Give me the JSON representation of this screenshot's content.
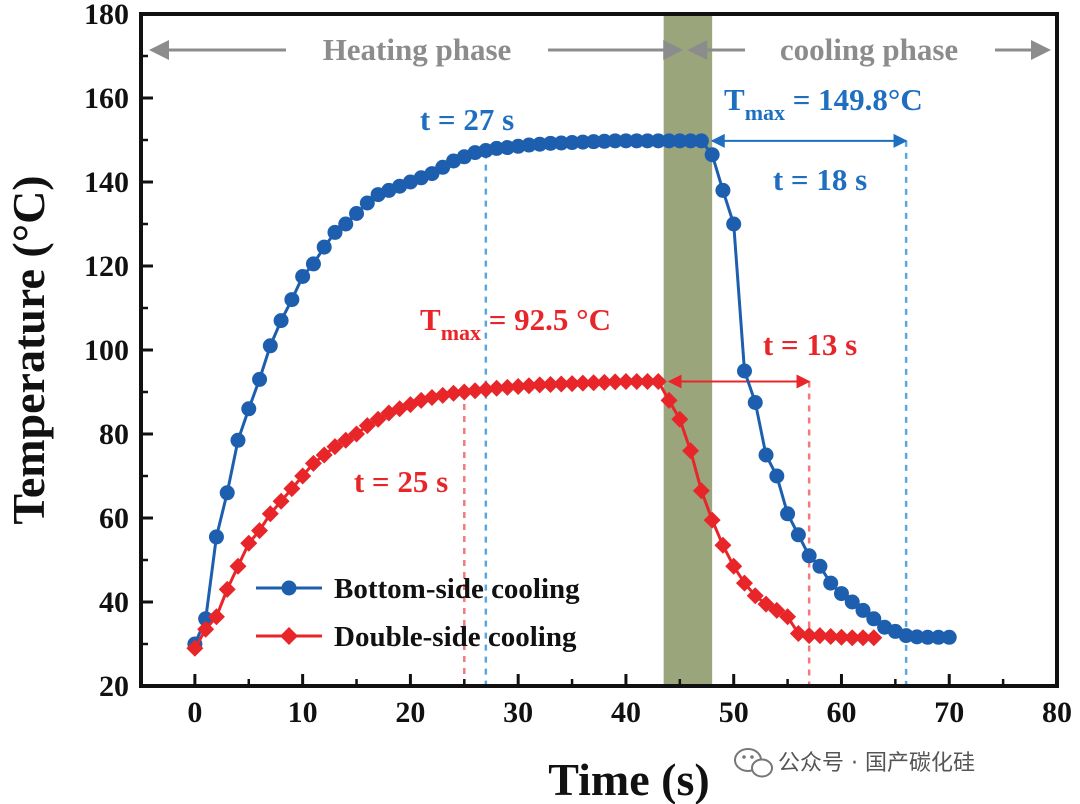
{
  "chart_data": {
    "type": "line",
    "xlabel": "Time (s)",
    "ylabel": "Temperature (°C)",
    "xlim": [
      -5,
      80
    ],
    "ylim": [
      20,
      180
    ],
    "xticks": [
      0,
      10,
      20,
      30,
      40,
      50,
      60,
      70,
      80
    ],
    "yticks": [
      20,
      40,
      60,
      80,
      100,
      120,
      140,
      160,
      180
    ],
    "grid": false,
    "legend_position": "bottom-left",
    "shaded_band": {
      "x_start": 43.5,
      "x_end": 48,
      "color": "#9aa57c"
    },
    "phases": {
      "heating_label": "Heating phase",
      "cooling_label": "cooling phase",
      "boundary_x": 45.5
    },
    "series": [
      {
        "name": "Bottom-side cooling",
        "color": "#1d5fae",
        "marker": "circle",
        "x": [
          0,
          1,
          2,
          3,
          4,
          5,
          6,
          7,
          8,
          9,
          10,
          11,
          12,
          13,
          14,
          15,
          16,
          17,
          18,
          19,
          20,
          21,
          22,
          23,
          24,
          25,
          26,
          27,
          28,
          29,
          30,
          31,
          32,
          33,
          34,
          35,
          36,
          37,
          38,
          39,
          40,
          41,
          42,
          43,
          44,
          45,
          46,
          47,
          48,
          49,
          50,
          51,
          52,
          53,
          54,
          55,
          56,
          57,
          58,
          59,
          60,
          61,
          62,
          63,
          64,
          65,
          66,
          67,
          68,
          69,
          70
        ],
        "values": [
          30,
          36,
          55.5,
          66,
          78.5,
          86,
          93,
          101,
          107,
          112,
          117.5,
          120.5,
          124.5,
          128,
          130,
          132.5,
          135,
          137,
          138,
          139,
          140,
          141,
          142,
          143.5,
          145,
          146,
          147,
          147.5,
          148,
          148.2,
          148.5,
          148.8,
          149,
          149.2,
          149.3,
          149.4,
          149.5,
          149.6,
          149.7,
          149.8,
          149.8,
          149.8,
          149.8,
          149.8,
          149.8,
          149.8,
          149.8,
          149.8,
          146.5,
          138,
          130,
          95,
          87.5,
          75,
          70,
          61,
          56,
          51,
          48.5,
          44.5,
          42,
          40,
          38,
          36,
          34,
          33,
          32,
          31.7,
          31.6,
          31.6,
          31.6
        ]
      },
      {
        "name": "Double-side cooling",
        "color": "#e8262a",
        "marker": "diamond",
        "x": [
          0,
          1,
          2,
          3,
          4,
          5,
          6,
          7,
          8,
          9,
          10,
          11,
          12,
          13,
          14,
          15,
          16,
          17,
          18,
          19,
          20,
          21,
          22,
          23,
          24,
          25,
          26,
          27,
          28,
          29,
          30,
          31,
          32,
          33,
          34,
          35,
          36,
          37,
          38,
          39,
          40,
          41,
          42,
          43,
          44,
          45,
          46,
          47,
          48,
          49,
          50,
          51,
          52,
          53,
          54,
          55,
          56,
          57,
          58,
          59,
          60,
          61,
          62,
          63
        ],
        "values": [
          29,
          33.5,
          36.5,
          43,
          48.5,
          54,
          57,
          61,
          64,
          67,
          70,
          73,
          75,
          77,
          78.5,
          80,
          82,
          83.5,
          85,
          86,
          87,
          88,
          88.7,
          89.2,
          89.7,
          90,
          90.3,
          90.6,
          90.9,
          91.1,
          91.3,
          91.5,
          91.7,
          91.8,
          91.9,
          92,
          92.1,
          92.2,
          92.3,
          92.4,
          92.5,
          92.5,
          92.5,
          92.5,
          88,
          83.5,
          76,
          66.5,
          59.5,
          53.5,
          48.5,
          44.5,
          41.5,
          39.5,
          38,
          36.5,
          32.5,
          32,
          32,
          31.8,
          31.6,
          31.5,
          31.5,
          31.5
        ]
      }
    ],
    "annotations": {
      "blue_t_heat": {
        "text": "t = 27 s",
        "line_x": 27
      },
      "blue_tmax": {
        "prefix": "T",
        "sub": "max",
        "value": " = 149.8°C"
      },
      "blue_t_cool": {
        "text": "t = 18 s",
        "line_x": 66,
        "arrow_from_x": 48,
        "arrow_to_x": 66
      },
      "red_tmax": {
        "prefix": "T",
        "sub": "max",
        "value": " = 92.5 °C"
      },
      "red_t_cool": {
        "text": "t = 13 s",
        "line_x": 57,
        "arrow_from_x": 44,
        "arrow_to_x": 57
      },
      "red_t_heat": {
        "text": "t = 25 s",
        "line_x": 25
      }
    }
  },
  "watermark": {
    "text": "公众号 · 国产碳化硅",
    "icon": "wechat-icon"
  }
}
